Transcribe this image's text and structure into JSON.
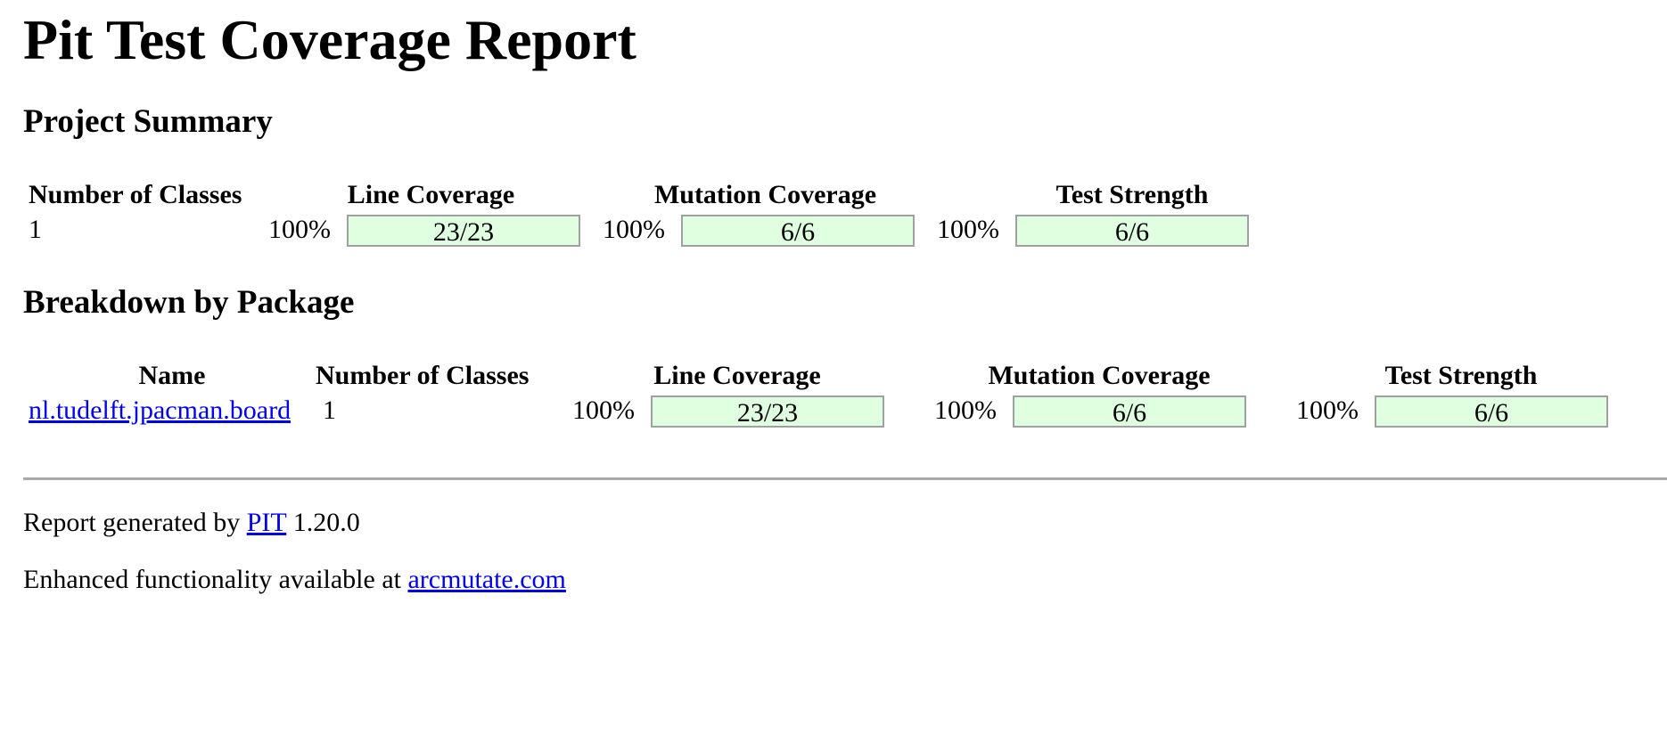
{
  "title": "Pit Test Coverage Report",
  "project_summary": {
    "heading": "Project Summary",
    "headers": {
      "classes": "Number of Classes",
      "line": "Line Coverage",
      "mutation": "Mutation Coverage",
      "strength": "Test Strength"
    },
    "row": {
      "classes": "1",
      "line_pct": "100%",
      "line_ratio": "23/23",
      "mutation_pct": "100%",
      "mutation_ratio": "6/6",
      "strength_pct": "100%",
      "strength_ratio": "6/6"
    }
  },
  "breakdown": {
    "heading": "Breakdown by Package",
    "headers": {
      "name": "Name",
      "classes": "Number of Classes",
      "line": "Line Coverage",
      "mutation": "Mutation Coverage",
      "strength": "Test Strength"
    },
    "rows": [
      {
        "name": "nl.tudelft.jpacman.board",
        "classes": "1",
        "line_pct": "100%",
        "line_ratio": "23/23",
        "mutation_pct": "100%",
        "mutation_ratio": "6/6",
        "strength_pct": "100%",
        "strength_ratio": "6/6"
      }
    ]
  },
  "footer": {
    "generated_prefix": "Report generated by",
    "generated_link": "PIT",
    "generated_version": "1.20.0",
    "enhanced_prefix": "Enhanced functionality available at",
    "enhanced_link": "arcmutate.com"
  },
  "colors": {
    "bar_fill": "#e0ffe0",
    "bar_border": "#a0a0a0",
    "link": "#0000ee"
  }
}
